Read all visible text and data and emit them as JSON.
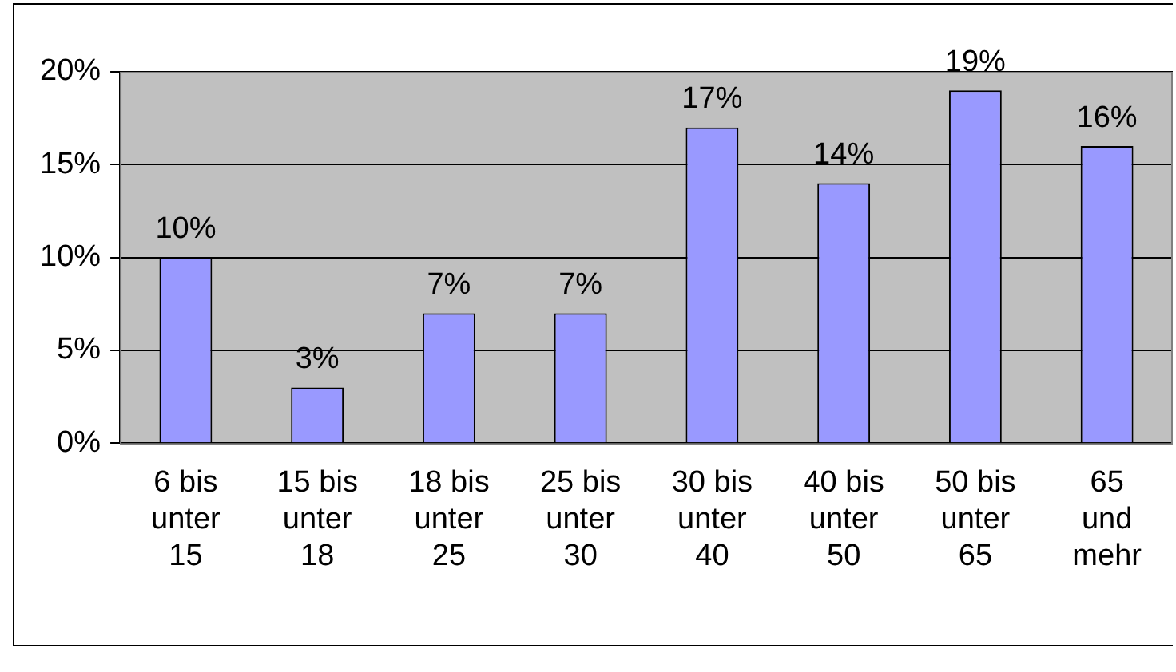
{
  "chart_data": {
    "type": "bar",
    "categories": [
      "6 bis unter 15",
      "15 bis unter 18",
      "18 bis unter 25",
      "25 bis unter 30",
      "30 bis unter 40",
      "40 bis unter 50",
      "50 bis unter 65",
      "65 und mehr"
    ],
    "values": [
      10,
      3,
      7,
      7,
      17,
      14,
      19,
      16
    ],
    "color": "#9999ff",
    "ylim": [
      0,
      20
    ],
    "yticks": [
      {
        "value": 0,
        "label": "0%"
      },
      {
        "value": 5,
        "label": "5%"
      },
      {
        "value": 10,
        "label": "10%"
      },
      {
        "value": 15,
        "label": "15%"
      },
      {
        "value": 20,
        "label": "20%"
      }
    ],
    "value_labels": [
      "10%",
      "3%",
      "7%",
      "7%",
      "17%",
      "14%",
      "19%",
      "16%"
    ],
    "grid": "y",
    "legend": false
  }
}
